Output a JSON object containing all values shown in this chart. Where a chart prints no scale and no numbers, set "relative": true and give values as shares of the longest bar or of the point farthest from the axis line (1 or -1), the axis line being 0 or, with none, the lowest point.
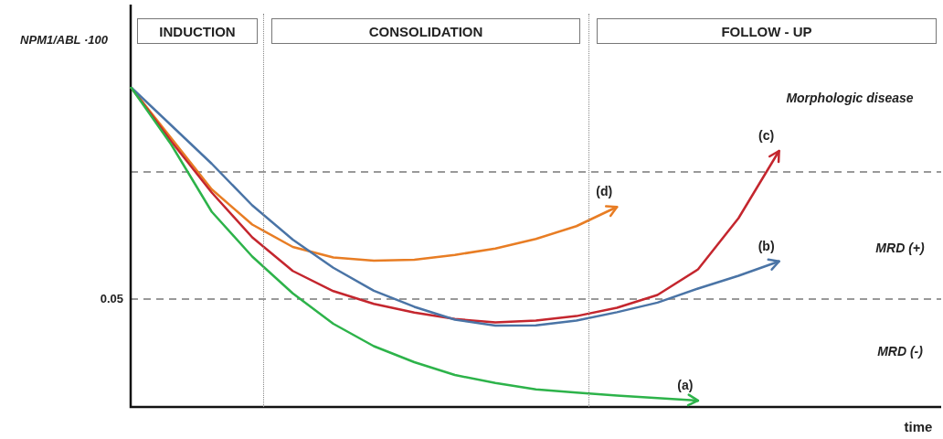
{
  "chart_data": {
    "type": "line",
    "relative": true,
    "ylabel": "NPM1/ABL ·100",
    "xlabel": "time",
    "legend": false,
    "marker": "none",
    "line_style": "solid",
    "categories": [
      null,
      null,
      null,
      null,
      null,
      null,
      null,
      null,
      null,
      null,
      null,
      null,
      null,
      null,
      null,
      null,
      null,
      null,
      null,
      null,
      null
    ],
    "series": [
      {
        "name": "(a)",
        "color": "#2db34a",
        "values": [
          1,
          0.82,
          0.61,
          0.47,
          0.355,
          0.26,
          0.19,
          0.14,
          0.1,
          0.075,
          0.055,
          0.045,
          0.036,
          0.028,
          0.02,
          null,
          null,
          null,
          null,
          null,
          null
        ]
      },
      {
        "name": "(b)",
        "color": "#4a74a6",
        "values": [
          1,
          0.88,
          0.76,
          0.63,
          0.523,
          0.435,
          0.363,
          0.313,
          0.273,
          0.254,
          0.255,
          0.27,
          0.296,
          0.326,
          0.37,
          0.41,
          0.455,
          null,
          null,
          null,
          null
        ]
      },
      {
        "name": "(c)",
        "color": "#c4262e",
        "values": [
          1,
          0.83,
          0.67,
          0.53,
          0.425,
          0.362,
          0.322,
          0.295,
          0.275,
          0.264,
          0.27,
          0.284,
          0.31,
          0.35,
          0.43,
          0.59,
          0.8,
          null,
          null,
          null,
          null
        ]
      },
      {
        "name": "(d)",
        "color": "#e87d24",
        "values": [
          1,
          0.84,
          0.68,
          0.57,
          0.5,
          0.467,
          0.457,
          0.46,
          0.475,
          0.495,
          0.525,
          0.565,
          0.625,
          null,
          null,
          null,
          null,
          null,
          null,
          null,
          null
        ]
      }
    ],
    "ref_lines": [
      {
        "axis": "y",
        "value": 0.734,
        "color": "#999999",
        "line_style": "dashed"
      },
      {
        "axis": "y",
        "value": 0.337,
        "color": "#999999",
        "line_style": "dashed"
      }
    ],
    "annotations": [
      "INDUCTION",
      "CONSOLIDATION",
      "FOLLOW - UP",
      "Morphologic disease",
      "MRD (+)",
      "MRD (-)",
      "0.05"
    ]
  }
}
